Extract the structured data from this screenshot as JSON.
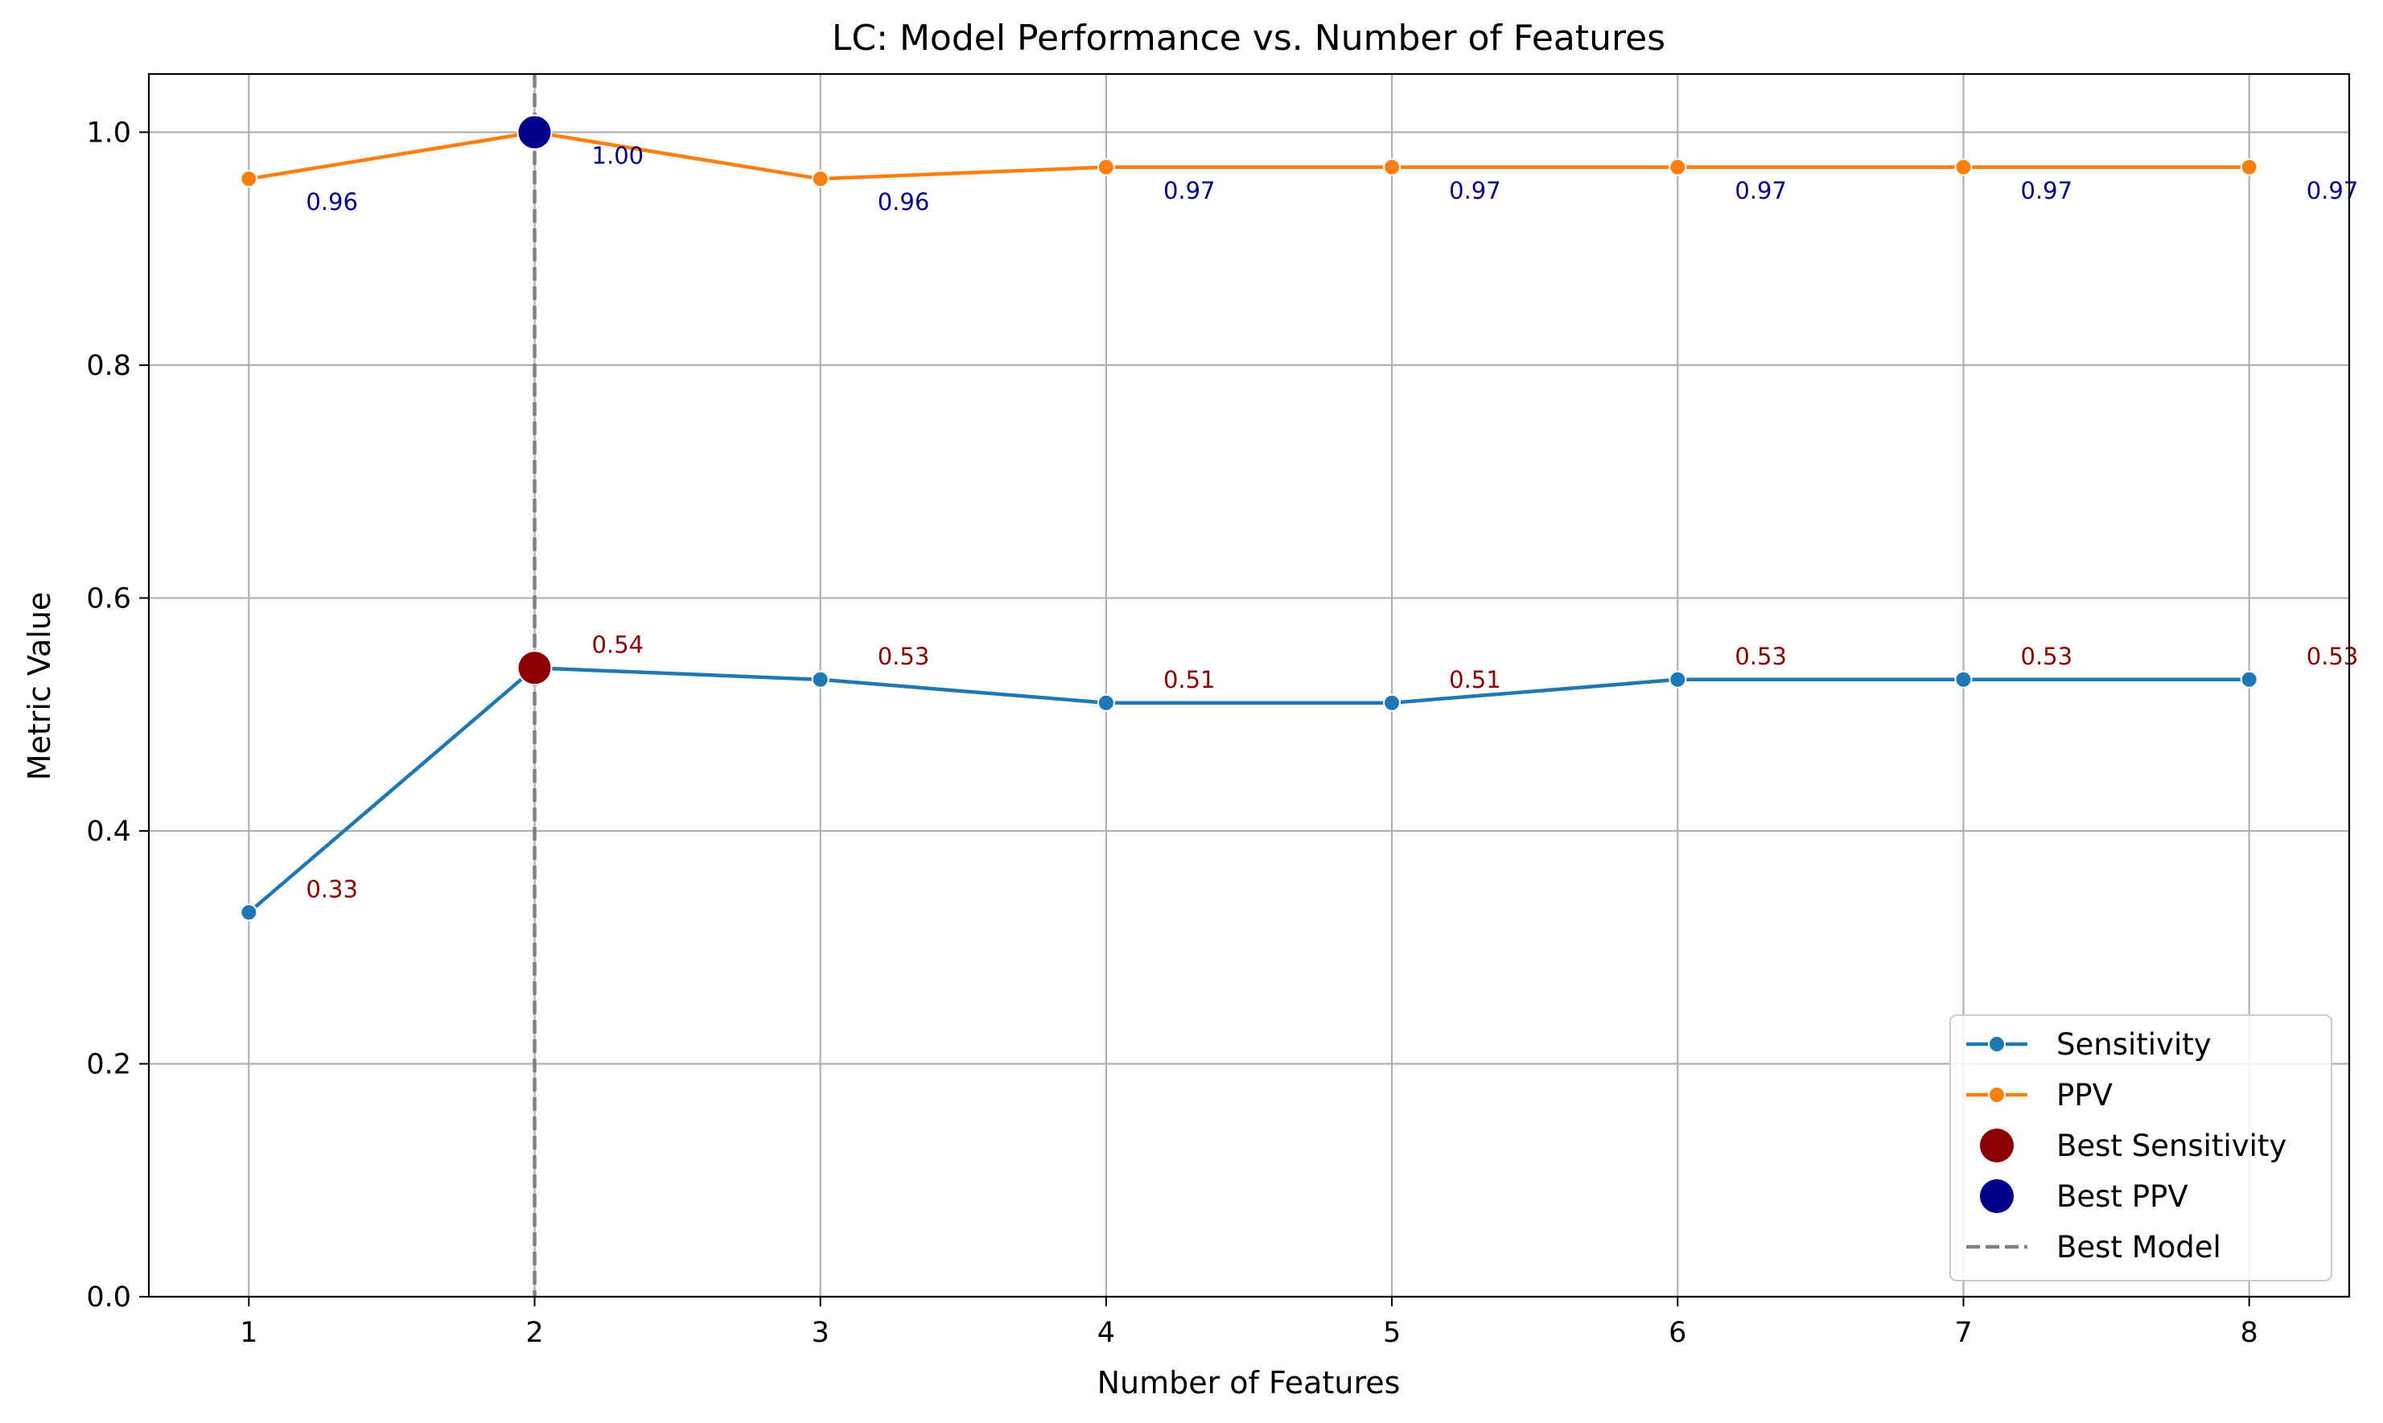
{
  "chart_data": {
    "type": "line",
    "title": "LC: Model Performance vs. Number of Features",
    "xlabel": "Number of Features",
    "ylabel": "Metric Value",
    "x": [
      1,
      2,
      3,
      4,
      5,
      6,
      7,
      8
    ],
    "xlim": [
      0.65,
      8.35
    ],
    "ylim": [
      0.0,
      1.05
    ],
    "xticks": [
      1,
      2,
      3,
      4,
      5,
      6,
      7,
      8
    ],
    "yticks": [
      0.0,
      0.2,
      0.4,
      0.6,
      0.8,
      1.0
    ],
    "ytick_labels": [
      "0.0",
      "0.2",
      "0.4",
      "0.6",
      "0.8",
      "1.0"
    ],
    "grid": true,
    "legend_position": "lower-right",
    "series": [
      {
        "name": "Sensitivity",
        "color": "#1f77b4",
        "values": [
          0.33,
          0.54,
          0.53,
          0.51,
          0.51,
          0.53,
          0.53,
          0.53
        ],
        "labels": [
          "0.33",
          "0.54",
          "0.53",
          "0.51",
          "0.51",
          "0.53",
          "0.53",
          "0.53"
        ],
        "label_color": "#8b0000"
      },
      {
        "name": "PPV",
        "color": "#ff7f0e",
        "values": [
          0.96,
          1.0,
          0.96,
          0.97,
          0.97,
          0.97,
          0.97,
          0.97
        ],
        "labels": [
          "0.96",
          "1.00",
          "0.96",
          "0.97",
          "0.97",
          "0.97",
          "0.97",
          "0.97"
        ],
        "label_color": "#00008b"
      }
    ],
    "highlights": [
      {
        "name": "Best Sensitivity",
        "x": 2,
        "y": 0.54,
        "color": "#8b0000"
      },
      {
        "name": "Best PPV",
        "x": 2,
        "y": 1.0,
        "color": "#00008b"
      }
    ],
    "reference_line": {
      "name": "Best Model",
      "x": 2,
      "color": "#808080",
      "style": "dashed"
    },
    "legend": [
      {
        "label": "Sensitivity",
        "kind": "line-marker",
        "color": "#1f77b4"
      },
      {
        "label": "PPV",
        "kind": "line-marker",
        "color": "#ff7f0e"
      },
      {
        "label": "Best Sensitivity",
        "kind": "marker",
        "color": "#8b0000"
      },
      {
        "label": "Best PPV",
        "kind": "marker",
        "color": "#00008b"
      },
      {
        "label": "Best Model",
        "kind": "dashed-line",
        "color": "#808080"
      }
    ]
  }
}
